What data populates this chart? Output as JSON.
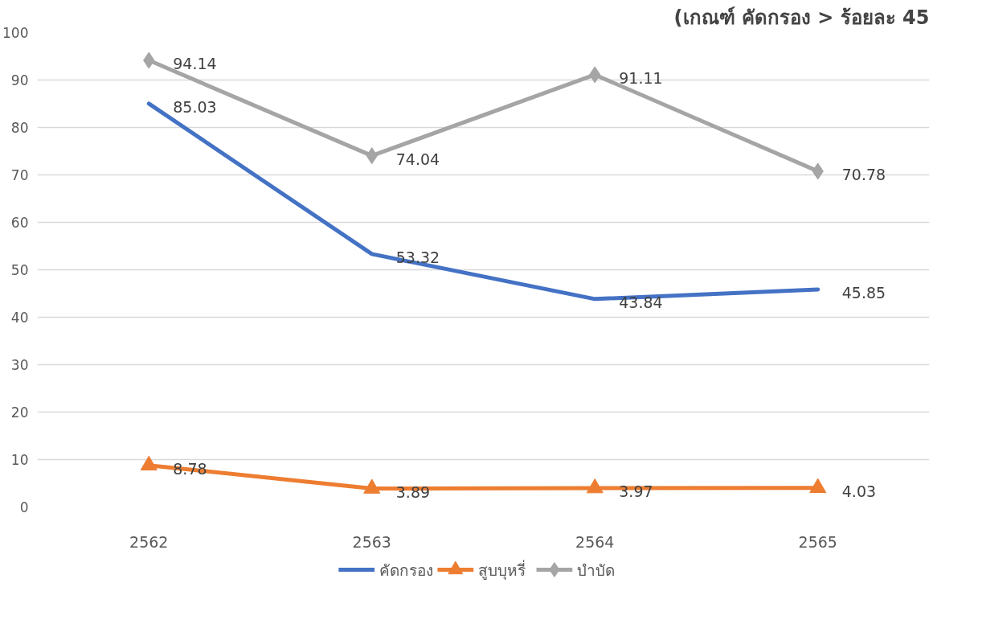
{
  "chart_data": {
    "type": "line",
    "title": "(เกณฑ์ คัดกรอง > ร้อยละ 45",
    "categories": [
      "2562",
      "2563",
      "2564",
      "2565"
    ],
    "series": [
      {
        "name": "คัดกรอง",
        "color": "#4472c4",
        "marker": "none",
        "values": [
          85.03,
          53.32,
          43.84,
          45.85
        ]
      },
      {
        "name": "สูบบุหรี่",
        "color": "#ed7d31",
        "marker": "triangle",
        "values": [
          8.78,
          3.89,
          3.97,
          4.03
        ]
      },
      {
        "name": "บำบัด",
        "color": "#a5a5a5",
        "marker": "diamond",
        "values": [
          94.14,
          74.04,
          91.11,
          70.78
        ]
      }
    ],
    "ylim": [
      0,
      100
    ],
    "yticks": [
      0,
      10,
      20,
      30,
      40,
      50,
      60,
      70,
      80,
      90,
      100
    ],
    "grid": "y",
    "legend": "bottom",
    "data_labels": true
  }
}
